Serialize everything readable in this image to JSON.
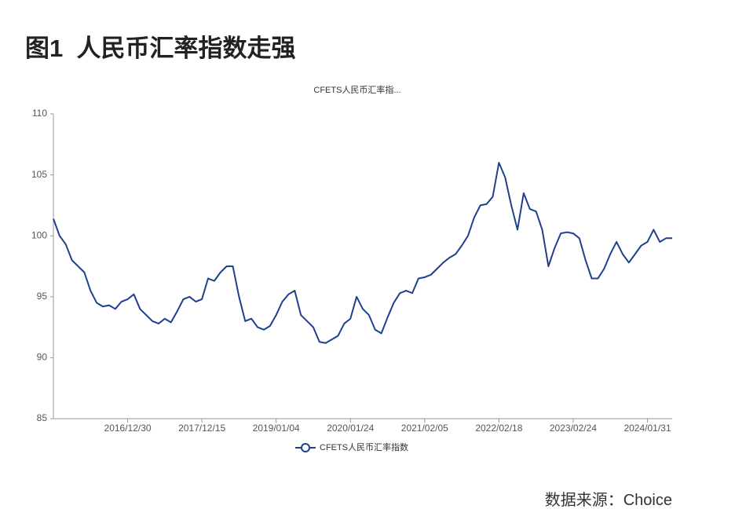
{
  "heading": "图1  人民币汇率指数走强",
  "source": "数据来源：Choice",
  "chart_data": {
    "type": "line",
    "title": "CFETS人民币汇率指...",
    "categories": [
      null,
      null,
      null,
      null,
      null,
      null,
      null,
      null,
      null,
      null,
      null,
      null,
      "2016/12/30",
      null,
      null,
      null,
      null,
      null,
      null,
      null,
      null,
      null,
      null,
      null,
      "2017/12/15",
      null,
      null,
      null,
      null,
      null,
      null,
      null,
      null,
      null,
      null,
      null,
      "2019/01/04",
      null,
      null,
      null,
      null,
      null,
      null,
      null,
      null,
      null,
      null,
      null,
      "2020/01/24",
      null,
      null,
      null,
      null,
      null,
      null,
      null,
      null,
      null,
      null,
      null,
      "2021/02/05",
      null,
      null,
      null,
      null,
      null,
      null,
      null,
      null,
      null,
      null,
      null,
      "2022/02/18",
      null,
      null,
      null,
      null,
      null,
      null,
      null,
      null,
      null,
      null,
      null,
      "2023/02/24",
      null,
      null,
      null,
      null,
      null,
      null,
      null,
      null,
      null,
      null,
      null,
      "2024/01/31",
      null,
      null,
      null,
      null
    ],
    "series": [
      {
        "name": "CFETS人民币汇率指数",
        "color": "#1f3f8f",
        "values": [
          101.4,
          100.0,
          99.3,
          98.0,
          97.5,
          97.0,
          95.5,
          94.5,
          94.2,
          94.3,
          94.0,
          94.6,
          94.8,
          95.2,
          94.0,
          93.5,
          93.0,
          92.8,
          93.2,
          92.9,
          93.8,
          94.8,
          95.0,
          94.6,
          94.8,
          96.5,
          96.3,
          97.0,
          97.5,
          97.5,
          95.0,
          93.0,
          93.2,
          92.5,
          92.3,
          92.6,
          93.5,
          94.6,
          95.2,
          95.5,
          93.5,
          93.0,
          92.5,
          91.3,
          91.2,
          91.5,
          91.8,
          92.8,
          93.2,
          95.0,
          94.0,
          93.5,
          92.3,
          92.0,
          93.3,
          94.5,
          95.3,
          95.5,
          95.3,
          96.5,
          96.6,
          96.8,
          97.3,
          97.8,
          98.2,
          98.5,
          99.2,
          100.0,
          101.5,
          102.5,
          102.6,
          103.2,
          106.0,
          104.8,
          102.5,
          100.5,
          103.5,
          102.2,
          102.0,
          100.5,
          97.5,
          99.0,
          100.2,
          100.3,
          100.2,
          99.8,
          98.0,
          96.5,
          96.5,
          97.3,
          98.5,
          99.5,
          98.5,
          97.8,
          98.5,
          99.2,
          99.5,
          100.5,
          99.5,
          99.8,
          99.8
        ]
      }
    ],
    "ylim": [
      85,
      110
    ],
    "yticks": [
      85,
      90,
      95,
      100,
      105,
      110
    ],
    "grid": false,
    "legend": "bottom"
  }
}
